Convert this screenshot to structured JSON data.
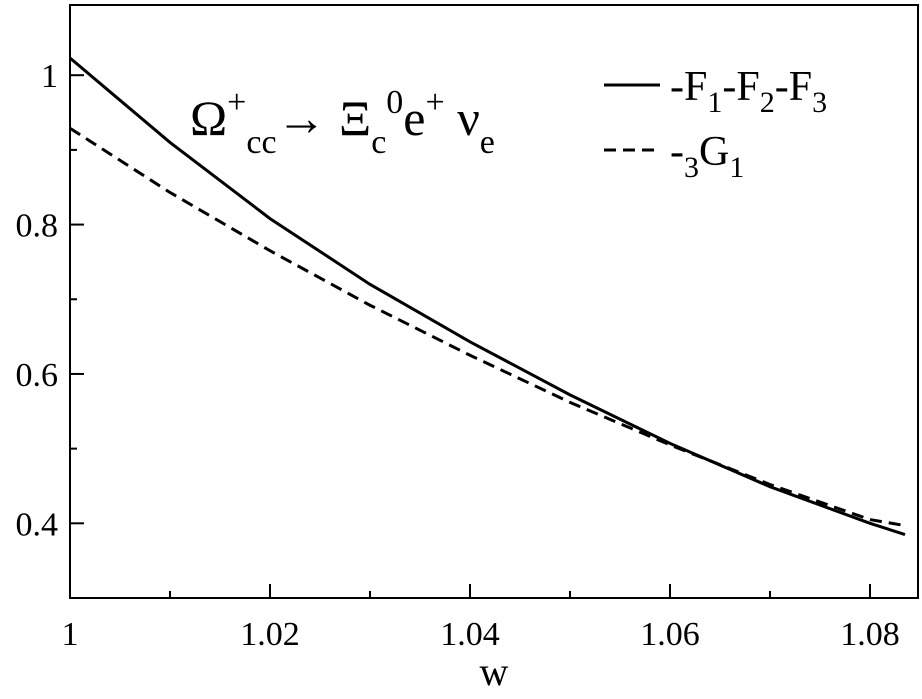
{
  "chart_data": {
    "type": "line",
    "x_label": "w",
    "annotation": [
      {
        "text": "Ω",
        "pos": "base"
      },
      {
        "text": "+",
        "pos": "sup"
      },
      {
        "text": "cc",
        "pos": "sub"
      },
      {
        "text": "→ Ξ",
        "pos": "base"
      },
      {
        "text": "c",
        "pos": "sub"
      },
      {
        "text": "0",
        "pos": "sup"
      },
      {
        "text": "e",
        "pos": "base"
      },
      {
        "text": "+",
        "pos": "sup"
      },
      {
        "text": " ν",
        "pos": "base"
      },
      {
        "text": "e",
        "pos": "sub"
      }
    ],
    "x": [
      1.0,
      1.01,
      1.02,
      1.03,
      1.04,
      1.05,
      1.06,
      1.07,
      1.08,
      1.0835
    ],
    "series": [
      {
        "name": "-F1-F2-F3",
        "color": "#000000",
        "dash": "solid",
        "values": [
          1.023,
          0.91,
          0.808,
          0.72,
          0.643,
          0.572,
          0.507,
          0.449,
          0.4,
          0.385
        ]
      },
      {
        "name": "-3G1",
        "color": "#000000",
        "dash": "dashed",
        "values": [
          0.929,
          0.843,
          0.765,
          0.692,
          0.625,
          0.562,
          0.505,
          0.452,
          0.405,
          0.397
        ]
      }
    ],
    "xlim": [
      1.0,
      1.0848
    ],
    "ylim": [
      0.3,
      1.094
    ],
    "xticks": [
      {
        "value": 1,
        "label": "1"
      },
      1.02,
      1.04,
      1.06,
      1.08
    ],
    "yticks": [
      0.4,
      0.6,
      0.8,
      {
        "value": 1,
        "label": "1"
      }
    ],
    "xminorticks": [
      1.01,
      1.03,
      1.05,
      1.07
    ],
    "yminorticks": [
      0.3,
      0.5,
      0.7,
      0.9
    ],
    "legend": "top-right"
  }
}
